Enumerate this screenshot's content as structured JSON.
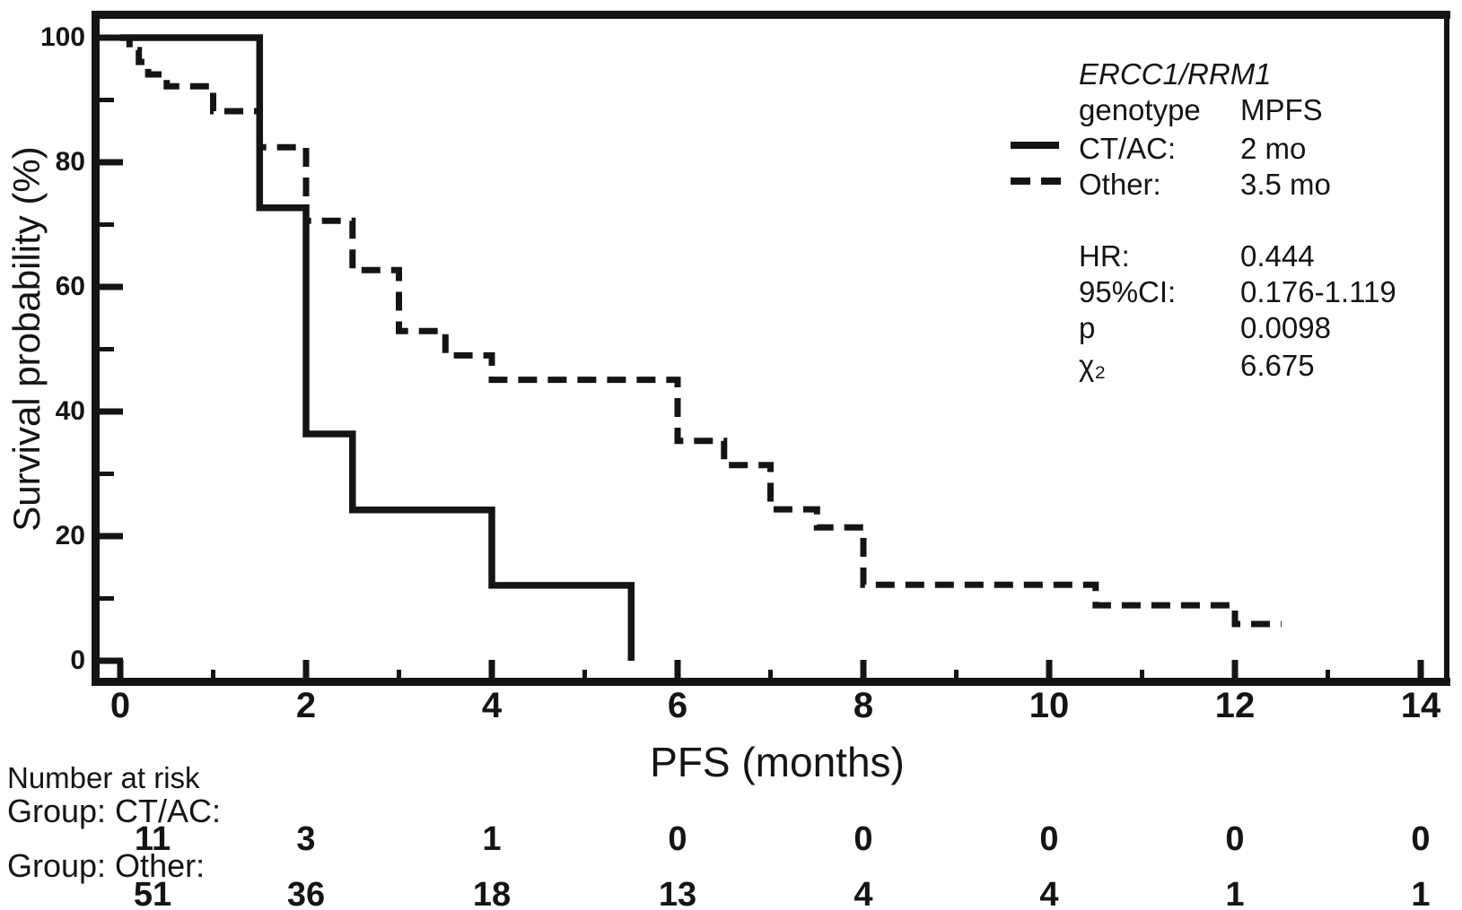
{
  "figure": {
    "background_color": "#ffffff",
    "ink_color": "#141414",
    "y_axis": {
      "title": "Survival probability (%)",
      "major_ticks": [
        0,
        20,
        40,
        60,
        80,
        100
      ],
      "minor_ticks": [
        10,
        30,
        50,
        70,
        90
      ]
    },
    "x_axis": {
      "title": "PFS (months)",
      "major_ticks": [
        0,
        2,
        4,
        6,
        8,
        10,
        12,
        14
      ],
      "minor_ticks": [
        1,
        3,
        5,
        7,
        9,
        11,
        13
      ]
    },
    "legend": {
      "header_line1": "ERCC1/RRM1",
      "header_col_label": "genotype",
      "header_col_value": "MPFS",
      "entries": [
        {
          "style": "solid",
          "label": "CT/AC:",
          "value": "2 mo"
        },
        {
          "style": "dashed",
          "label": "Other:",
          "value": "3.5 mo"
        }
      ],
      "stats": [
        {
          "label": "HR:",
          "value": "0.444"
        },
        {
          "label": "95%CI:",
          "value": "0.176-1.119"
        },
        {
          "label": "p",
          "value": "0.0098"
        },
        {
          "label": "χ₂",
          "value": "6.675"
        }
      ]
    },
    "risk_table": {
      "title": "Number at risk",
      "groups": [
        {
          "label": "Group: CT/AC:",
          "values": [
            "11",
            "3",
            "1",
            "0",
            "0",
            "0",
            "0",
            "0"
          ]
        },
        {
          "label": "Group: Other:",
          "values": [
            "51",
            "36",
            "18",
            "13",
            "4",
            "4",
            "1",
            "1"
          ]
        }
      ]
    }
  },
  "chart_data": {
    "type": "line",
    "subtype": "kaplan-meier-step",
    "title": "",
    "xlabel": "PFS (months)",
    "ylabel": "Survival probability (%)",
    "xlim": [
      0,
      14
    ],
    "ylim": [
      0,
      100
    ],
    "grid": false,
    "legend_position": "upper right",
    "series": [
      {
        "name": "CT/AC",
        "line_style": "solid",
        "median_pfs": "2 mo",
        "points": [
          [
            0,
            100
          ],
          [
            1.5,
            72.7
          ],
          [
            2,
            36.4
          ],
          [
            2.5,
            24.2
          ],
          [
            4,
            12.1
          ],
          [
            5.5,
            0
          ]
        ]
      },
      {
        "name": "Other",
        "line_style": "dashed",
        "median_pfs": "3.5 mo",
        "points": [
          [
            0,
            100
          ],
          [
            0.1,
            98
          ],
          [
            0.2,
            96.1
          ],
          [
            0.3,
            94.1
          ],
          [
            0.5,
            92.2
          ],
          [
            1,
            88.2
          ],
          [
            1.5,
            82.4
          ],
          [
            2,
            70.6
          ],
          [
            2.5,
            62.7
          ],
          [
            3,
            52.9
          ],
          [
            3.5,
            49
          ],
          [
            4,
            45.1
          ],
          [
            6,
            35.3
          ],
          [
            6.5,
            31.4
          ],
          [
            7,
            24.3
          ],
          [
            7.5,
            21.4
          ],
          [
            8,
            12.2
          ],
          [
            10.5,
            8.9
          ],
          [
            12,
            5.9
          ],
          [
            12.5,
            5.9
          ]
        ]
      }
    ],
    "stats": {
      "HR": 0.444,
      "CI95": "0.176-1.119",
      "p": 0.0098,
      "chi2": 6.675
    }
  }
}
